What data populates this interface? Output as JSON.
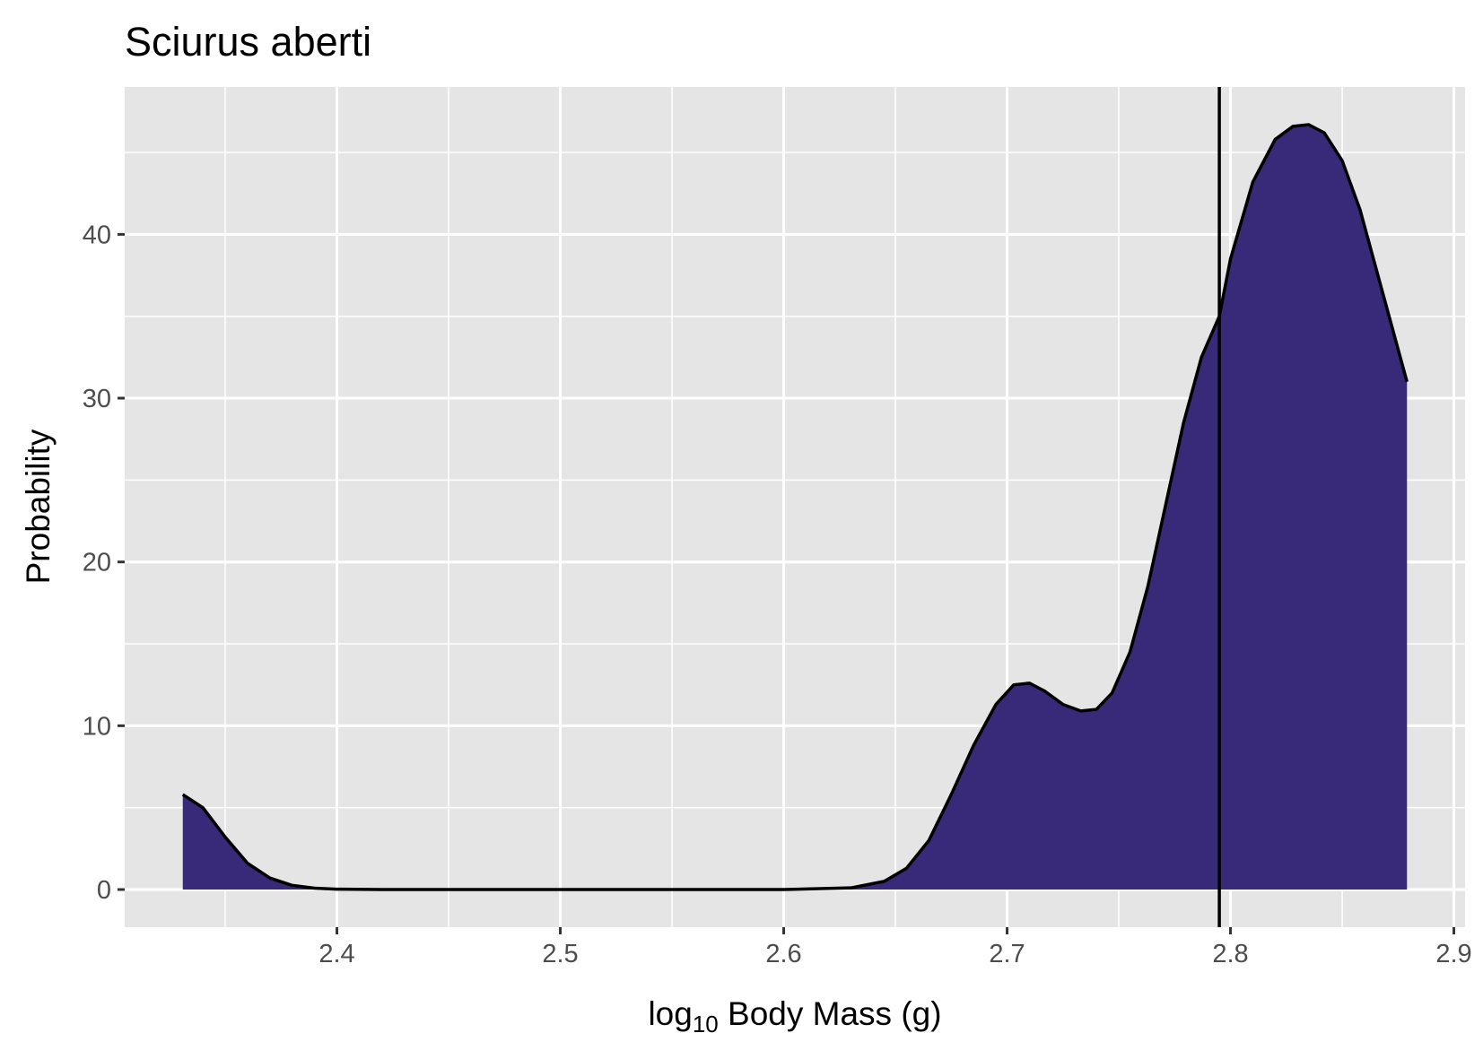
{
  "chart_data": {
    "type": "area",
    "title": "Sciurus aberti",
    "xlabel": {
      "prefix": "log",
      "subscript": "10",
      "suffix": " Body Mass (g)"
    },
    "ylabel": "Probability",
    "xlim": [
      2.305,
      2.905
    ],
    "ylim": [
      -2.3,
      49.0
    ],
    "x_ticks": [
      2.4,
      2.5,
      2.6,
      2.7,
      2.8,
      2.9
    ],
    "x_tick_labels": [
      "2.4",
      "2.5",
      "2.6",
      "2.7",
      "2.8",
      "2.9"
    ],
    "x_minor_ticks": [
      2.35,
      2.45,
      2.55,
      2.65,
      2.75,
      2.85
    ],
    "y_ticks": [
      0,
      10,
      20,
      30,
      40
    ],
    "y_tick_labels": [
      "0",
      "10",
      "20",
      "30",
      "40"
    ],
    "y_minor_ticks": [
      5,
      15,
      25,
      35,
      45
    ],
    "grid": true,
    "legend": "none",
    "fill_color": "#382a78",
    "line_color": "#000000",
    "panel_color": "#e5e5e5",
    "vline_x": 2.795,
    "series": [
      {
        "x": [
          2.331,
          2.34,
          2.35,
          2.36,
          2.37,
          2.38,
          2.39,
          2.4,
          2.42,
          2.45,
          2.5,
          2.55,
          2.6,
          2.63,
          2.645,
          2.655,
          2.665,
          2.675,
          2.685,
          2.695,
          2.703,
          2.71,
          2.717,
          2.725,
          2.733,
          2.74,
          2.747,
          2.755,
          2.763,
          2.771,
          2.779,
          2.787,
          2.795,
          2.8,
          2.81,
          2.82,
          2.828,
          2.835,
          2.842,
          2.85,
          2.858,
          2.866,
          2.874,
          2.879
        ],
        "y": [
          5.8,
          5.0,
          3.2,
          1.6,
          0.7,
          0.25,
          0.08,
          0.02,
          0.0,
          0.0,
          0.0,
          0.0,
          0.0,
          0.1,
          0.5,
          1.3,
          3.0,
          5.8,
          8.8,
          11.3,
          12.5,
          12.6,
          12.1,
          11.3,
          10.9,
          11.0,
          12.0,
          14.5,
          18.5,
          23.5,
          28.5,
          32.5,
          35.0,
          38.5,
          43.2,
          45.8,
          46.6,
          46.7,
          46.2,
          44.5,
          41.5,
          37.5,
          33.5,
          31.0
        ]
      }
    ]
  }
}
